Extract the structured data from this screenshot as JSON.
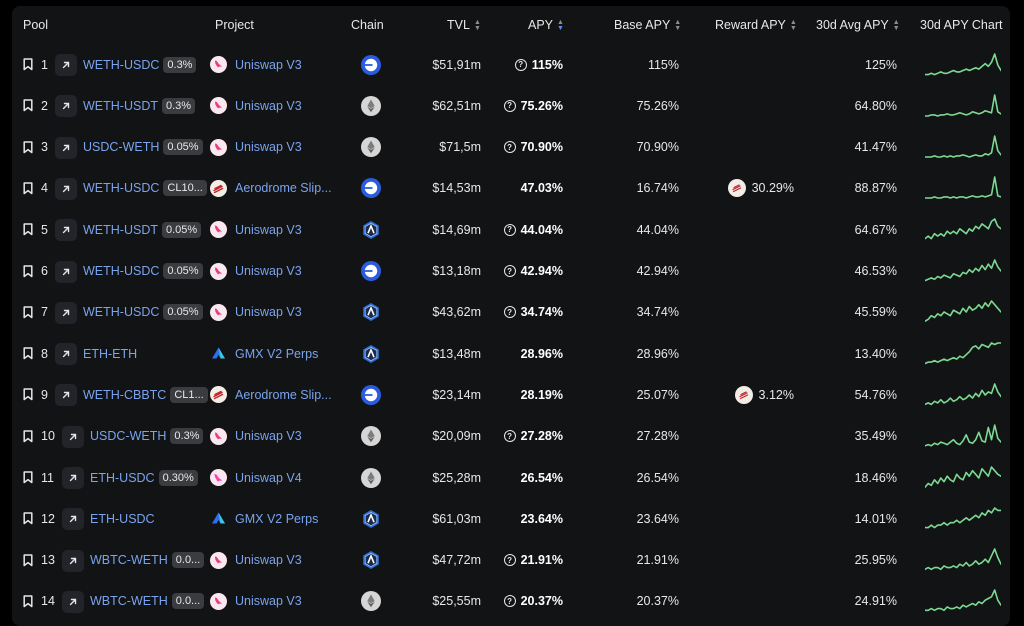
{
  "headers": {
    "pool": "Pool",
    "project": "Project",
    "chain": "Chain",
    "tvl": "TVL",
    "apy": "APY",
    "base_apy": "Base APY",
    "reward_apy": "Reward APY",
    "avg_apy": "30d Avg APY",
    "chart": "30d APY Chart"
  },
  "colors": {
    "accent_link": "#7aa3ee",
    "spark_green": "#7cd992",
    "base_chain": "#2b5ce0",
    "arbitrum": "#2d6fd8",
    "ethereum": "#d4d4d4"
  },
  "rows": [
    {
      "idx": "1",
      "pool": "WETH-USDC",
      "fee": "0.3%",
      "project": "Uniswap V3",
      "proj_icon": "uniswap-icon",
      "chain_icon": "base-chain-icon",
      "tvl": "$51,91m",
      "apy_q": true,
      "apy": "115%",
      "base": "115%",
      "reward": "",
      "reward_icon": "",
      "avg": "125%",
      "spark": [
        3,
        3,
        4,
        3,
        4,
        5,
        4,
        4,
        5,
        6,
        5,
        5,
        6,
        7,
        6,
        7,
        8,
        7,
        9,
        11,
        9,
        12,
        18,
        10,
        6
      ]
    },
    {
      "idx": "2",
      "pool": "WETH-USDT",
      "fee": "0.3%",
      "project": "Uniswap V3",
      "proj_icon": "uniswap-icon",
      "chain_icon": "ethereum-icon",
      "tvl": "$62,51m",
      "apy_q": true,
      "apy": "75.26%",
      "base": "75.26%",
      "reward": "",
      "reward_icon": "",
      "avg": "64.80%",
      "spark": [
        2,
        2,
        3,
        3,
        2,
        3,
        3,
        4,
        3,
        3,
        4,
        5,
        4,
        3,
        4,
        6,
        5,
        4,
        5,
        7,
        6,
        5,
        22,
        6,
        4
      ]
    },
    {
      "idx": "3",
      "pool": "USDC-WETH",
      "fee": "0.05%",
      "project": "Uniswap V3",
      "proj_icon": "uniswap-icon",
      "chain_icon": "ethereum-icon",
      "tvl": "$71,5m",
      "apy_q": true,
      "apy": "70.90%",
      "base": "70.90%",
      "reward": "",
      "reward_icon": "",
      "avg": "41.47%",
      "spark": [
        2,
        2,
        2,
        3,
        2,
        2,
        3,
        2,
        3,
        2,
        3,
        3,
        4,
        3,
        2,
        3,
        4,
        3,
        3,
        5,
        4,
        6,
        22,
        8,
        4
      ]
    },
    {
      "idx": "4",
      "pool": "WETH-USDC",
      "fee": "CL10...",
      "project": "Aerodrome Slip...",
      "proj_icon": "aerodrome-icon",
      "chain_icon": "base-chain-icon",
      "tvl": "$14,53m",
      "apy_q": false,
      "apy": "47.03%",
      "base": "16.74%",
      "reward": "30.29%",
      "reward_icon": "aerodrome-reward-icon",
      "avg": "88.87%",
      "spark": [
        2,
        2,
        2,
        3,
        2,
        2,
        3,
        3,
        2,
        3,
        2,
        3,
        3,
        2,
        3,
        4,
        3,
        3,
        4,
        3,
        4,
        5,
        22,
        4,
        3
      ]
    },
    {
      "idx": "5",
      "pool": "WETH-USDT",
      "fee": "0.05%",
      "project": "Uniswap V3",
      "proj_icon": "uniswap-icon",
      "chain_icon": "arbitrum-icon",
      "tvl": "$14,69m",
      "apy_q": true,
      "apy": "44.04%",
      "base": "44.04%",
      "reward": "",
      "reward_icon": "",
      "avg": "64.67%",
      "spark": [
        4,
        5,
        4,
        6,
        5,
        6,
        5,
        7,
        6,
        7,
        6,
        8,
        7,
        6,
        8,
        7,
        9,
        8,
        10,
        9,
        8,
        11,
        12,
        9,
        8
      ]
    },
    {
      "idx": "6",
      "pool": "WETH-USDC",
      "fee": "0.05%",
      "project": "Uniswap V3",
      "proj_icon": "uniswap-icon",
      "chain_icon": "base-chain-icon",
      "tvl": "$13,18m",
      "apy_q": true,
      "apy": "42.94%",
      "base": "42.94%",
      "reward": "",
      "reward_icon": "",
      "avg": "46.53%",
      "spark": [
        3,
        4,
        5,
        4,
        6,
        5,
        7,
        6,
        5,
        8,
        7,
        6,
        9,
        8,
        11,
        9,
        12,
        10,
        14,
        11,
        15,
        12,
        18,
        13,
        10
      ]
    },
    {
      "idx": "7",
      "pool": "WETH-USDC",
      "fee": "0.05%",
      "project": "Uniswap V3",
      "proj_icon": "uniswap-icon",
      "chain_icon": "arbitrum-icon",
      "tvl": "$43,62m",
      "apy_q": true,
      "apy": "34.74%",
      "base": "34.74%",
      "reward": "",
      "reward_icon": "",
      "avg": "45.59%",
      "spark": [
        5,
        6,
        8,
        7,
        9,
        8,
        10,
        9,
        8,
        11,
        10,
        9,
        12,
        10,
        13,
        11,
        12,
        14,
        12,
        15,
        13,
        16,
        14,
        12,
        10
      ]
    },
    {
      "idx": "8",
      "pool": "ETH-ETH",
      "fee": "",
      "project": "GMX V2 Perps",
      "proj_icon": "gmx-icon",
      "chain_icon": "arbitrum-icon",
      "tvl": "$13,48m",
      "apy_q": false,
      "apy": "28.96%",
      "base": "28.96%",
      "reward": "",
      "reward_icon": "",
      "avg": "13.40%",
      "spark": [
        4,
        5,
        5,
        6,
        5,
        6,
        7,
        6,
        7,
        8,
        7,
        9,
        8,
        10,
        12,
        15,
        16,
        14,
        17,
        16,
        15,
        18,
        17,
        18,
        18
      ]
    },
    {
      "idx": "9",
      "pool": "WETH-CBBTC",
      "fee": "CL1...",
      "project": "Aerodrome Slip...",
      "proj_icon": "aerodrome-icon",
      "chain_icon": "base-chain-icon",
      "tvl": "$23,14m",
      "apy_q": false,
      "apy": "28.19%",
      "base": "25.07%",
      "reward": "3.12%",
      "reward_icon": "aerodrome-reward-icon",
      "avg": "54.76%",
      "spark": [
        3,
        4,
        3,
        5,
        4,
        6,
        4,
        5,
        7,
        5,
        6,
        8,
        6,
        7,
        9,
        7,
        10,
        8,
        12,
        9,
        11,
        10,
        16,
        11,
        8
      ]
    },
    {
      "idx": "10",
      "pool": "USDC-WETH",
      "fee": "0.3%",
      "project": "Uniswap V3",
      "proj_icon": "uniswap-icon",
      "chain_icon": "ethereum-icon",
      "tvl": "$20,09m",
      "apy_q": true,
      "apy": "27.28%",
      "base": "27.28%",
      "reward": "",
      "reward_icon": "",
      "avg": "35.49%",
      "spark": [
        3,
        4,
        3,
        5,
        4,
        6,
        5,
        4,
        6,
        8,
        5,
        4,
        7,
        12,
        6,
        5,
        8,
        14,
        7,
        6,
        18,
        8,
        20,
        9,
        6
      ]
    },
    {
      "idx": "11",
      "pool": "ETH-USDC",
      "fee": "0.30%",
      "project": "Uniswap V4",
      "proj_icon": "uniswap-v4-icon",
      "chain_icon": "ethereum-icon",
      "tvl": "$25,28m",
      "apy_q": false,
      "apy": "26.54%",
      "base": "26.54%",
      "reward": "",
      "reward_icon": "",
      "avg": "18.46%",
      "spark": [
        3,
        5,
        4,
        7,
        5,
        8,
        6,
        9,
        7,
        6,
        10,
        8,
        7,
        11,
        9,
        12,
        10,
        8,
        13,
        11,
        9,
        14,
        12,
        10,
        9
      ]
    },
    {
      "idx": "12",
      "pool": "ETH-USDC",
      "fee": "",
      "project": "GMX V2 Perps",
      "proj_icon": "gmx-icon",
      "chain_icon": "arbitrum-icon",
      "tvl": "$61,03m",
      "apy_q": false,
      "apy": "23.64%",
      "base": "23.64%",
      "reward": "",
      "reward_icon": "",
      "avg": "14.01%",
      "spark": [
        5,
        5,
        6,
        5,
        6,
        6,
        7,
        6,
        7,
        7,
        8,
        7,
        8,
        9,
        8,
        9,
        10,
        9,
        11,
        10,
        12,
        11,
        13,
        12,
        12
      ]
    },
    {
      "idx": "13",
      "pool": "WBTC-WETH",
      "fee": "0.0...",
      "project": "Uniswap V3",
      "proj_icon": "uniswap-icon",
      "chain_icon": "arbitrum-icon",
      "tvl": "$47,72m",
      "apy_q": true,
      "apy": "21.91%",
      "base": "21.91%",
      "reward": "",
      "reward_icon": "",
      "avg": "25.95%",
      "spark": [
        2,
        3,
        2,
        3,
        3,
        2,
        4,
        3,
        3,
        4,
        3,
        5,
        4,
        6,
        4,
        5,
        7,
        5,
        6,
        8,
        6,
        10,
        14,
        9,
        5
      ]
    },
    {
      "idx": "14",
      "pool": "WBTC-WETH",
      "fee": "0.0...",
      "project": "Uniswap V3",
      "proj_icon": "uniswap-icon",
      "chain_icon": "ethereum-icon",
      "tvl": "$25,55m",
      "apy_q": true,
      "apy": "20.37%",
      "base": "20.37%",
      "reward": "",
      "reward_icon": "",
      "avg": "24.91%",
      "spark": [
        2,
        2,
        3,
        2,
        3,
        3,
        2,
        4,
        3,
        3,
        4,
        3,
        5,
        4,
        5,
        6,
        5,
        7,
        6,
        8,
        9,
        10,
        14,
        8,
        5
      ]
    }
  ]
}
